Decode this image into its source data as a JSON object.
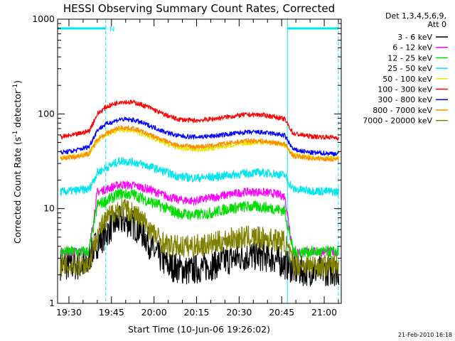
{
  "chart_data": {
    "type": "line",
    "title": "HESSI Observing Summary Count Rates, Corrected",
    "xlabel": "Start Time (10-Jun-06 19:26:02)",
    "ylabel_parts": [
      "Corrected Count Rate (s",
      "-1",
      " detector",
      "-1",
      ")"
    ],
    "y_scale": "log",
    "ylim": [
      1,
      1000
    ],
    "xlim": [
      "19:26",
      "21:06"
    ],
    "x_ticks": [
      "19:30",
      "19:45",
      "20:00",
      "20:15",
      "20:30",
      "20:45",
      "21:00"
    ],
    "y_ticks": [
      "1",
      "10",
      "100",
      "1000"
    ],
    "legend_header": [
      "Det 1,3,4,5,6,9,",
      "Att 0"
    ],
    "footer_date": "21-Feb-2010 16:18",
    "night_marker_label": "N",
    "night_intervals": [
      [
        "19:26",
        "19:43"
      ],
      [
        "20:47",
        "21:05"
      ]
    ],
    "series": [
      {
        "name": "3 - 6 keV",
        "color": "#000000",
        "x": [
          "19:27",
          "19:32",
          "19:36",
          "19:39",
          "19:42",
          "19:45",
          "19:48",
          "19:52",
          "19:56",
          "20:00",
          "20:05",
          "20:12",
          "20:20",
          "20:28",
          "20:35",
          "20:42",
          "20:47",
          "20:50",
          "20:55",
          "21:05"
        ],
        "y": [
          2.5,
          2.5,
          2.5,
          4,
          5,
          6.5,
          7.5,
          7,
          5.5,
          3.5,
          2.5,
          2.2,
          2.5,
          3,
          3.2,
          3,
          2.5,
          2.2,
          2.2,
          2.2
        ]
      },
      {
        "name": "6 - 12 keV",
        "color": "#ff00ff",
        "x": [
          "19:27",
          "19:32",
          "19:37",
          "19:40",
          "19:43",
          "19:48",
          "19:53",
          "19:58",
          "20:03",
          "20:08",
          "20:14",
          "20:20",
          "20:26",
          "20:32",
          "20:37",
          "20:42",
          "20:46",
          "20:49",
          "20:55",
          "21:05"
        ],
        "y": [
          3.5,
          3.5,
          3.5,
          15,
          16,
          18,
          17.5,
          16,
          14,
          12.5,
          12,
          13,
          14,
          15,
          15,
          14.5,
          13.5,
          3.5,
          3.5,
          3.5
        ]
      },
      {
        "name": "12 - 25 keV",
        "color": "#00dd00",
        "x": [
          "19:27",
          "19:32",
          "19:37",
          "19:40",
          "19:43",
          "19:48",
          "19:53",
          "19:58",
          "20:03",
          "20:08",
          "20:14",
          "20:20",
          "20:26",
          "20:32",
          "20:37",
          "20:42",
          "20:46",
          "20:49",
          "20:55",
          "21:05"
        ],
        "y": [
          3.5,
          3.5,
          3.5,
          11,
          12,
          14.5,
          14,
          12,
          10.5,
          9,
          8.5,
          9,
          10,
          10.5,
          10.5,
          10,
          9.5,
          3.5,
          3.5,
          3.5
        ]
      },
      {
        "name": "25 - 50 keV",
        "color": "#00e5ee",
        "x": [
          "19:27",
          "19:32",
          "19:37",
          "19:40",
          "19:43",
          "19:48",
          "19:53",
          "19:58",
          "20:03",
          "20:08",
          "20:14",
          "20:20",
          "20:26",
          "20:32",
          "20:37",
          "20:42",
          "20:46",
          "20:49",
          "20:55",
          "21:05"
        ],
        "y": [
          15,
          15.5,
          16,
          24,
          27,
          32,
          31,
          28,
          25,
          22,
          21,
          21.5,
          22.5,
          23.5,
          24,
          23.5,
          22.5,
          16,
          15.5,
          15
        ]
      },
      {
        "name": "50 - 100 keV",
        "color": "#e6e600",
        "x": [
          "19:27",
          "19:32",
          "19:37",
          "19:40",
          "19:43",
          "19:48",
          "19:53",
          "19:58",
          "20:03",
          "20:08",
          "20:14",
          "20:20",
          "20:26",
          "20:32",
          "20:37",
          "20:42",
          "20:46",
          "20:49",
          "20:55",
          "21:05"
        ],
        "y": [
          35,
          36,
          38,
          52,
          60,
          68,
          66,
          58,
          50,
          44,
          42,
          43,
          46,
          49,
          50,
          49,
          47,
          37,
          35,
          34
        ]
      },
      {
        "name": "100 - 300 keV",
        "color": "#ff0000",
        "x": [
          "19:27",
          "19:32",
          "19:37",
          "19:40",
          "19:43",
          "19:48",
          "19:53",
          "19:58",
          "20:03",
          "20:08",
          "20:14",
          "20:20",
          "20:26",
          "20:32",
          "20:37",
          "20:42",
          "20:46",
          "20:49",
          "20:55",
          "21:05"
        ],
        "y": [
          57,
          60,
          66,
          100,
          118,
          135,
          132,
          118,
          100,
          88,
          85,
          88,
          93,
          98,
          98,
          94,
          88,
          62,
          58,
          56
        ]
      },
      {
        "name": "300 - 800 keV",
        "color": "#0000ff",
        "x": [
          "19:27",
          "19:32",
          "19:37",
          "19:40",
          "19:43",
          "19:48",
          "19:53",
          "19:58",
          "20:03",
          "20:08",
          "20:14",
          "20:20",
          "20:26",
          "20:32",
          "20:37",
          "20:42",
          "20:46",
          "20:49",
          "20:55",
          "21:05"
        ],
        "y": [
          39,
          41,
          45,
          68,
          78,
          88,
          86,
          76,
          66,
          59,
          57,
          58,
          61,
          64,
          64,
          62,
          59,
          42,
          39,
          38
        ]
      },
      {
        "name": "800 - 7000 keV",
        "color": "#ff8c00",
        "x": [
          "19:27",
          "19:32",
          "19:37",
          "19:40",
          "19:43",
          "19:48",
          "19:53",
          "19:58",
          "20:03",
          "20:08",
          "20:14",
          "20:20",
          "20:26",
          "20:32",
          "20:37",
          "20:42",
          "20:46",
          "20:49",
          "20:55",
          "21:05"
        ],
        "y": [
          34,
          35,
          38,
          55,
          62,
          72,
          70,
          61,
          53,
          47,
          45,
          46,
          49,
          52,
          52,
          50,
          48,
          36,
          34,
          33
        ]
      },
      {
        "name": "7000 - 20000 keV",
        "color": "#808000",
        "x": [
          "19:27",
          "19:32",
          "19:37",
          "19:40",
          "19:43",
          "19:46",
          "19:49",
          "19:53",
          "19:57",
          "20:01",
          "20:05",
          "20:12",
          "20:20",
          "20:27",
          "20:33",
          "20:40",
          "20:46",
          "20:49",
          "20:55",
          "21:05"
        ],
        "y": [
          2.5,
          2.5,
          2.6,
          5.5,
          7.5,
          9.5,
          10,
          9,
          7,
          5,
          4,
          4,
          4.2,
          4.8,
          5,
          4.8,
          4.5,
          2.6,
          2.5,
          2.5
        ]
      }
    ]
  }
}
